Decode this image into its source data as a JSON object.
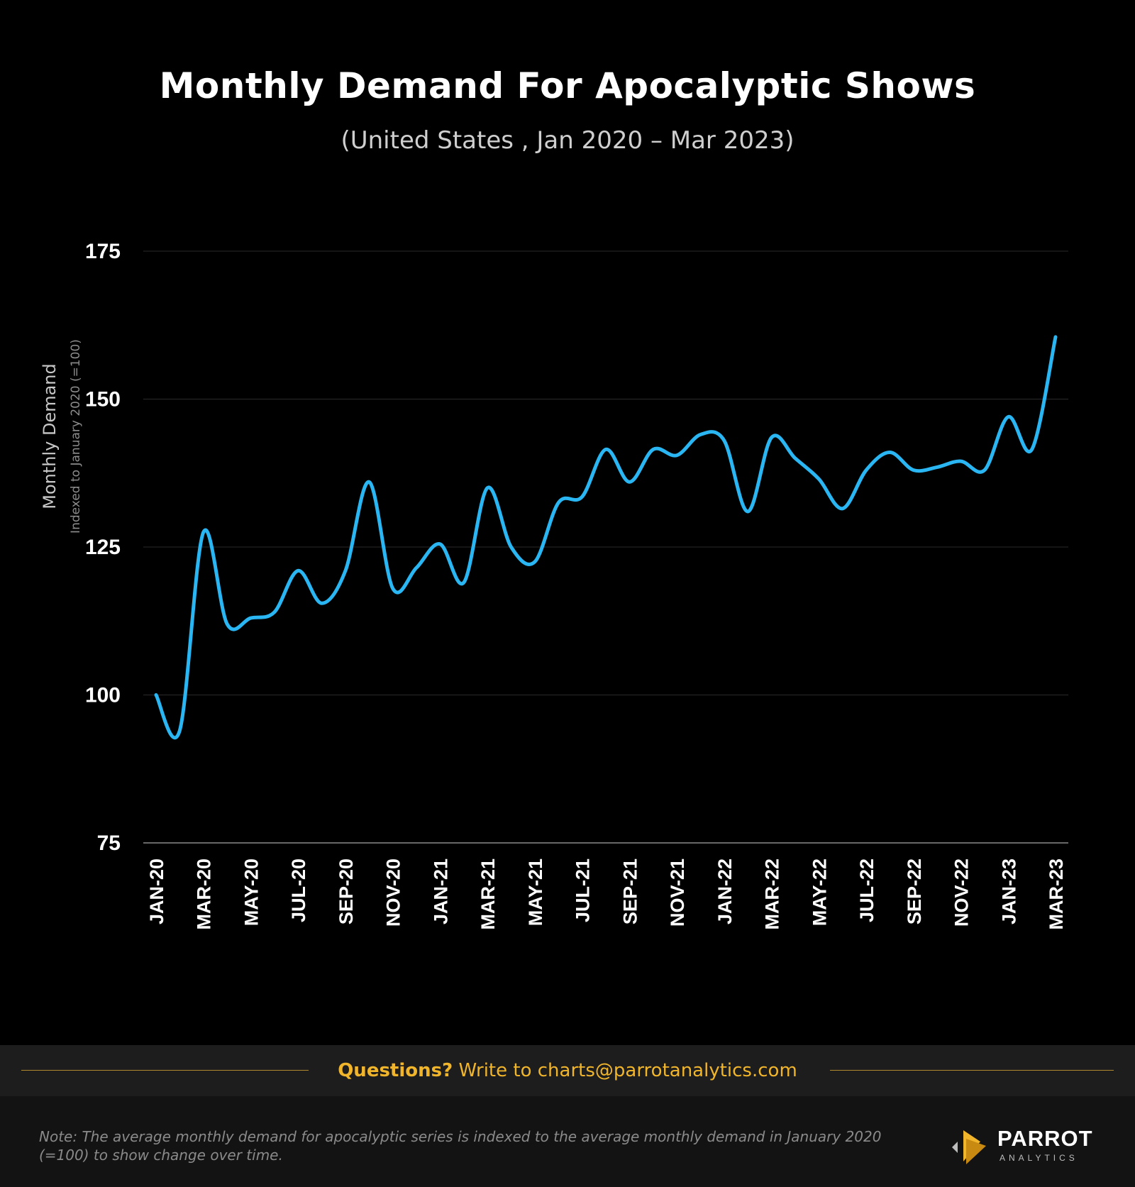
{
  "chart_data": {
    "type": "line",
    "title": "Monthly Demand For Apocalyptic Shows",
    "subtitle": "(United States , Jan 2020 – Mar 2023)",
    "ylabel": "Monthly Demand",
    "ylabel_sub": "Indexed to January 2020 (=100)",
    "xlabel": "",
    "ylim": [
      75,
      175
    ],
    "yticks": [
      75,
      100,
      125,
      150,
      175
    ],
    "grid": true,
    "legend": "none",
    "x": [
      "JAN-20",
      "FEB-20",
      "MAR-20",
      "APR-20",
      "MAY-20",
      "JUN-20",
      "JUL-20",
      "AUG-20",
      "SEP-20",
      "OCT-20",
      "NOV-20",
      "DEC-20",
      "JAN-21",
      "FEB-21",
      "MAR-21",
      "APR-21",
      "MAY-21",
      "JUN-21",
      "JUL-21",
      "AUG-21",
      "SEP-21",
      "OCT-21",
      "NOV-21",
      "DEC-21",
      "JAN-22",
      "FEB-22",
      "MAR-22",
      "APR-22",
      "MAY-22",
      "JUN-22",
      "JUL-22",
      "AUG-22",
      "SEP-22",
      "OCT-22",
      "NOV-22",
      "DEC-22",
      "JAN-23",
      "FEB-23",
      "MAR-23"
    ],
    "x_tick_labels": [
      "JAN-20",
      "MAR-20",
      "MAY-20",
      "JUL-20",
      "SEP-20",
      "NOV-20",
      "JAN-21",
      "MAR-21",
      "MAY-21",
      "JUL-21",
      "SEP-21",
      "NOV-21",
      "JAN-22",
      "MAR-22",
      "MAY-22",
      "JUL-22",
      "SEP-22",
      "NOV-22",
      "JAN-23",
      "MAR-23"
    ],
    "series": [
      {
        "values": [
          100,
          94,
          127.5,
          112,
          113,
          114,
          121,
          115.5,
          121,
          136,
          118,
          121.5,
          125.5,
          119,
          135,
          125,
          122.5,
          132.5,
          133.5,
          141.5,
          136,
          141.5,
          140.5,
          144,
          143,
          131,
          143.5,
          140,
          136.5,
          131.5,
          138,
          141,
          138,
          138.5,
          139.5,
          138,
          147,
          141.5,
          160.5
        ],
        "color": "#29b6f2"
      }
    ]
  },
  "footer": {
    "contact_strong": "Questions?",
    "contact_rest": " Write to charts@parrotanalytics.com",
    "note": "Note: The average monthly demand for apocalyptic series is indexed to the average  monthly demand in January 2020 (=100) to show change over time.",
    "logo_word": "PARROT",
    "logo_sub": "ANALYTICS",
    "accent_color": "#f1b52c"
  }
}
